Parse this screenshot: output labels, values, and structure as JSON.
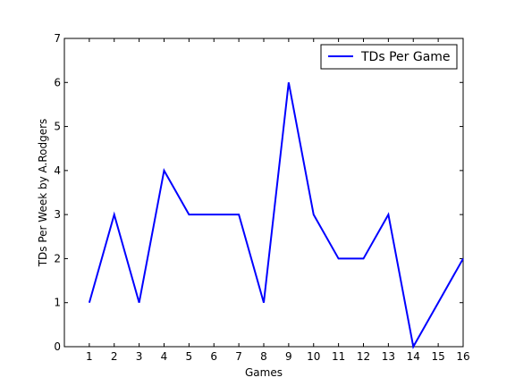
{
  "chart_data": {
    "type": "line",
    "x": [
      1,
      2,
      3,
      4,
      5,
      6,
      7,
      8,
      9,
      10,
      11,
      12,
      13,
      14,
      15,
      16
    ],
    "series": [
      {
        "name": "TDs Per Game",
        "values": [
          1,
          3,
          1,
          4,
          3,
          3,
          3,
          1,
          6,
          3,
          2,
          2,
          3,
          0,
          1,
          2
        ]
      }
    ],
    "xlabel": "Games",
    "ylabel": "TDs Per Week by A.Rodgers",
    "xlim": [
      0,
      16
    ],
    "ylim": [
      0,
      7
    ],
    "xticks": [
      1,
      2,
      3,
      4,
      5,
      6,
      7,
      8,
      9,
      10,
      11,
      12,
      13,
      14,
      15,
      16
    ],
    "yticks": [
      0,
      1,
      2,
      3,
      4,
      5,
      6,
      7
    ],
    "grid": false,
    "legend_position": "top-right",
    "line_color": "#0000ff"
  }
}
